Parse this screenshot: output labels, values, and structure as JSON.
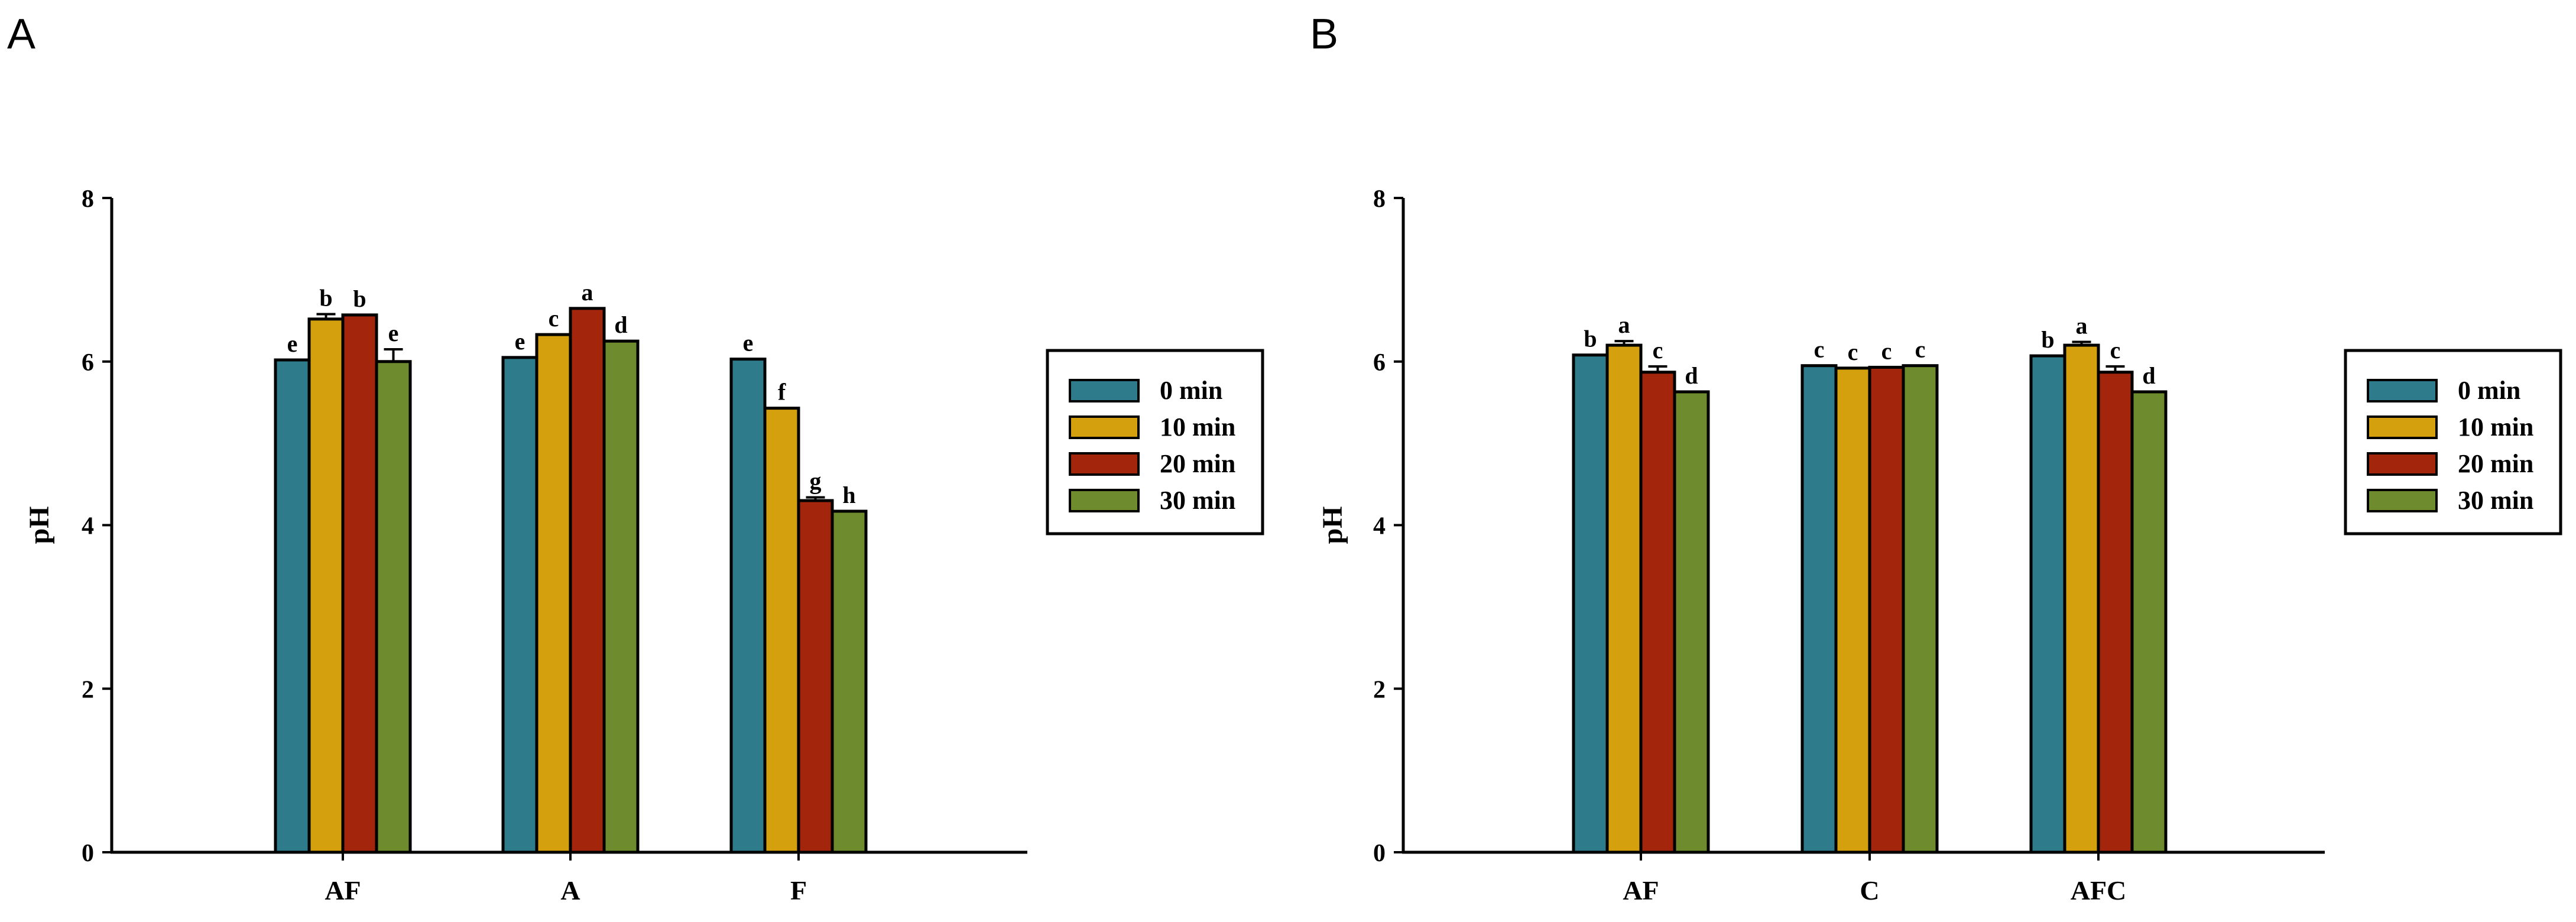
{
  "chart_data": [
    {
      "panel": "A",
      "type": "bar",
      "ylabel": "pH",
      "xlabel": "",
      "ylim": [
        0,
        8
      ],
      "yticks": [
        0,
        2,
        4,
        6,
        8
      ],
      "categories": [
        "AF",
        "A",
        "F"
      ],
      "legend_position": "right",
      "series": [
        {
          "name": "0 min",
          "color": "#2E7B8C",
          "values": [
            6.02,
            6.05,
            6.03
          ],
          "errors": [
            0.0,
            0.0,
            0.0
          ],
          "letters": [
            "e",
            "e",
            "e"
          ]
        },
        {
          "name": "10 min",
          "color": "#D4A00E",
          "values": [
            6.52,
            6.33,
            5.43
          ],
          "errors": [
            0.06,
            0.0,
            0.0
          ],
          "letters": [
            "b",
            "c",
            "f"
          ]
        },
        {
          "name": "20 min",
          "color": "#A3260C",
          "values": [
            6.57,
            6.65,
            4.3
          ],
          "errors": [
            0.0,
            0.0,
            0.04
          ],
          "letters": [
            "b",
            "a",
            "g"
          ]
        },
        {
          "name": "30 min",
          "color": "#6E8C2E",
          "values": [
            6.0,
            6.25,
            4.17
          ],
          "errors": [
            0.15,
            0.0,
            0.0
          ],
          "letters": [
            "e",
            "d",
            "h"
          ]
        }
      ]
    },
    {
      "panel": "B",
      "type": "bar",
      "ylabel": "pH",
      "xlabel": "",
      "ylim": [
        0,
        8
      ],
      "yticks": [
        0,
        2,
        4,
        6,
        8
      ],
      "categories": [
        "AF",
        "C",
        "AFC"
      ],
      "legend_position": "right",
      "series": [
        {
          "name": "0 min",
          "color": "#2E7B8C",
          "values": [
            6.08,
            5.95,
            6.07
          ],
          "errors": [
            0.0,
            0.0,
            0.0
          ],
          "letters": [
            "b",
            "c",
            "b"
          ]
        },
        {
          "name": "10 min",
          "color": "#D4A00E",
          "values": [
            6.2,
            5.92,
            6.2
          ],
          "errors": [
            0.05,
            0.0,
            0.04
          ],
          "letters": [
            "a",
            "c",
            "a"
          ]
        },
        {
          "name": "20 min",
          "color": "#A3260C",
          "values": [
            5.87,
            5.93,
            5.87
          ],
          "errors": [
            0.07,
            0.0,
            0.07
          ],
          "letters": [
            "c",
            "c",
            "c"
          ]
        },
        {
          "name": "30 min",
          "color": "#6E8C2E",
          "values": [
            5.63,
            5.95,
            5.63
          ],
          "errors": [
            0.0,
            0.0,
            0.0
          ],
          "letters": [
            "d",
            "c",
            "d"
          ]
        }
      ]
    }
  ]
}
